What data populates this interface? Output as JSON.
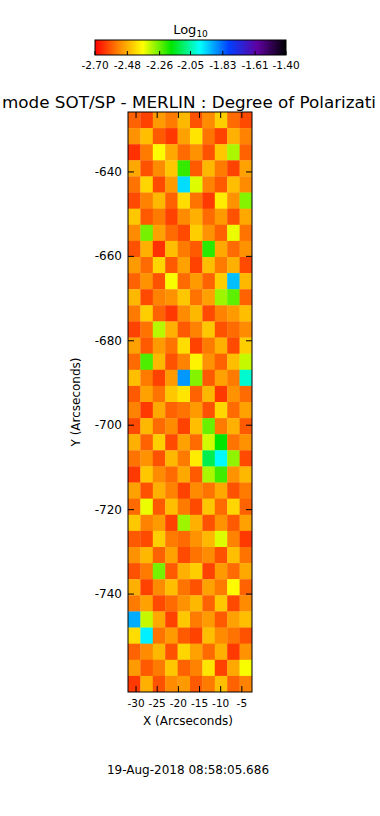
{
  "chart_data": {
    "type": "heatmap",
    "title": "mode SOT/SP - MERLIN : Degree of Polarizati",
    "xlabel": "X (Arcseconds)",
    "ylabel": "Y (Arcseconds)",
    "annotation": "19-Aug-2018 08:58:05.686",
    "xlim": [
      -31.9,
      -2.6
    ],
    "ylim": [
      -763.2,
      -625.8
    ],
    "xticks": [
      -30,
      -25,
      -20,
      -15,
      -10,
      -5
    ],
    "yticks": [
      -640,
      -660,
      -680,
      -700,
      -720,
      -740
    ],
    "colorbar": {
      "label": "Log10",
      "range": [
        -2.7,
        -1.4
      ],
      "ticks": [
        {
          "value": -2.7,
          "label": "-2.70"
        },
        {
          "value": -2.48,
          "label": "-2.48"
        },
        {
          "value": -2.26,
          "label": "-2.26"
        },
        {
          "value": -2.05,
          "label": "-2.05"
        },
        {
          "value": -1.83,
          "label": "-1.83"
        },
        {
          "value": -1.61,
          "label": "-1.61"
        },
        {
          "value": -1.4,
          "label": "-1.40"
        }
      ]
    },
    "cells": [
      [
        -2.58,
        -2.62,
        -2.51,
        -2.55,
        -2.47,
        -2.6,
        -2.53,
        -2.44,
        -2.57,
        -2.61
      ],
      [
        -2.52,
        -2.46,
        -2.59,
        -2.63,
        -2.5,
        -2.41,
        -2.56,
        -2.62,
        -2.48,
        -2.54
      ],
      [
        -2.64,
        -2.55,
        -2.38,
        -2.49,
        -2.57,
        -2.52,
        -2.6,
        -2.45,
        -2.31,
        -2.58
      ],
      [
        -2.49,
        -2.6,
        -2.53,
        -2.45,
        -2.22,
        -2.59,
        -2.47,
        -2.55,
        -2.62,
        -2.5
      ],
      [
        -2.56,
        -2.43,
        -2.61,
        -2.51,
        -1.95,
        -2.35,
        -2.54,
        -2.59,
        -2.46,
        -2.53
      ],
      [
        -2.61,
        -2.54,
        -2.47,
        -2.58,
        -2.42,
        -2.56,
        -2.63,
        -2.4,
        -2.52,
        -2.28
      ],
      [
        -2.45,
        -2.59,
        -2.55,
        -2.62,
        -2.53,
        -2.48,
        -2.57,
        -2.51,
        -2.6,
        -2.49
      ],
      [
        -2.53,
        -2.27,
        -2.5,
        -2.57,
        -2.61,
        -2.44,
        -2.52,
        -2.58,
        -2.36,
        -2.56
      ],
      [
        -2.6,
        -2.48,
        -2.64,
        -2.46,
        -2.55,
        -2.59,
        -2.21,
        -2.49,
        -2.57,
        -2.52
      ],
      [
        -2.51,
        -2.57,
        -2.43,
        -2.59,
        -2.5,
        -2.62,
        -2.46,
        -2.55,
        -2.48,
        -2.61
      ],
      [
        -2.58,
        -2.52,
        -2.6,
        -2.37,
        -2.57,
        -2.51,
        -2.58,
        -2.44,
        -1.92,
        -2.47
      ],
      [
        -2.47,
        -2.61,
        -2.54,
        -2.52,
        -2.45,
        -2.56,
        -2.5,
        -2.3,
        -2.25,
        -2.58
      ],
      [
        -2.55,
        -2.44,
        -2.58,
        -2.63,
        -2.53,
        -2.47,
        -2.61,
        -2.54,
        -2.51,
        -2.46
      ],
      [
        -2.62,
        -2.56,
        -2.32,
        -2.48,
        -2.59,
        -2.54,
        -2.45,
        -2.6,
        -2.57,
        -2.53
      ],
      [
        -2.5,
        -2.59,
        -2.51,
        -2.56,
        -2.42,
        -2.62,
        -2.55,
        -2.48,
        -2.61,
        -2.44
      ],
      [
        -2.57,
        -2.24,
        -2.47,
        -2.6,
        -2.54,
        -2.39,
        -2.52,
        -2.58,
        -2.46,
        -2.33
      ],
      [
        -2.46,
        -2.55,
        -2.62,
        -2.51,
        -1.88,
        -2.28,
        -2.59,
        -2.5,
        -2.55,
        -2.02
      ],
      [
        -2.59,
        -2.5,
        -2.56,
        -2.45,
        -2.41,
        -2.58,
        -2.47,
        -2.63,
        -2.52,
        -2.57
      ],
      [
        -2.54,
        -2.63,
        -2.49,
        -2.58,
        -2.56,
        -2.51,
        -2.6,
        -2.43,
        -2.57,
        -2.5
      ],
      [
        -2.61,
        -2.47,
        -2.57,
        -2.53,
        -2.62,
        -2.46,
        -2.26,
        -2.55,
        -2.48,
        -2.59
      ],
      [
        -2.48,
        -2.58,
        -2.44,
        -2.61,
        -2.5,
        -2.57,
        -2.34,
        -2.18,
        -2.56,
        -2.52
      ],
      [
        -2.56,
        -2.52,
        -2.6,
        -2.47,
        -2.55,
        -2.4,
        -2.12,
        -1.98,
        -2.29,
        -2.61
      ],
      [
        -2.63,
        -2.45,
        -2.53,
        -2.57,
        -2.49,
        -2.59,
        -2.31,
        -2.23,
        -2.52,
        -2.47
      ],
      [
        -2.5,
        -2.6,
        -2.48,
        -2.54,
        -2.62,
        -2.53,
        -2.56,
        -2.49,
        -2.6,
        -2.55
      ],
      [
        -2.57,
        -2.36,
        -2.59,
        -2.46,
        -2.55,
        -2.61,
        -2.45,
        -2.57,
        -2.43,
        -2.58
      ],
      [
        -2.45,
        -2.54,
        -2.51,
        -2.62,
        -2.3,
        -2.48,
        -2.6,
        -2.52,
        -2.59,
        -2.5
      ],
      [
        -2.59,
        -2.61,
        -2.44,
        -2.55,
        -2.57,
        -2.52,
        -2.47,
        -2.35,
        -2.54,
        -2.63
      ],
      [
        -2.52,
        -2.47,
        -2.58,
        -2.5,
        -2.61,
        -2.56,
        -2.53,
        -2.6,
        -2.46,
        -2.56
      ],
      [
        -2.6,
        -2.55,
        -2.27,
        -2.59,
        -2.48,
        -2.44,
        -2.62,
        -2.51,
        -2.57,
        -2.49
      ],
      [
        -2.48,
        -2.62,
        -2.53,
        -2.46,
        -2.56,
        -2.6,
        -2.5,
        -2.55,
        -2.38,
        -2.58
      ],
      [
        -2.55,
        -2.5,
        -2.61,
        -2.57,
        -2.52,
        -2.47,
        -2.58,
        -2.45,
        -2.61,
        -2.53
      ],
      [
        -1.9,
        -2.33,
        -2.49,
        -2.62,
        -2.45,
        -2.55,
        -2.51,
        -2.59,
        -2.5,
        -2.46
      ],
      [
        -2.42,
        -1.97,
        -2.56,
        -2.51,
        -2.59,
        -2.62,
        -2.46,
        -2.53,
        -2.56,
        -2.6
      ],
      [
        -2.58,
        -2.53,
        -2.47,
        -2.6,
        -2.43,
        -2.5,
        -2.57,
        -2.48,
        -2.63,
        -2.52
      ],
      [
        -2.51,
        -2.59,
        -2.55,
        -2.45,
        -2.58,
        -2.54,
        -2.41,
        -2.62,
        -2.49,
        -2.37
      ],
      [
        -2.63,
        -2.48,
        -2.6,
        -2.53,
        -2.51,
        -2.59,
        -2.55,
        -2.46,
        -2.58,
        -2.54
      ]
    ]
  }
}
